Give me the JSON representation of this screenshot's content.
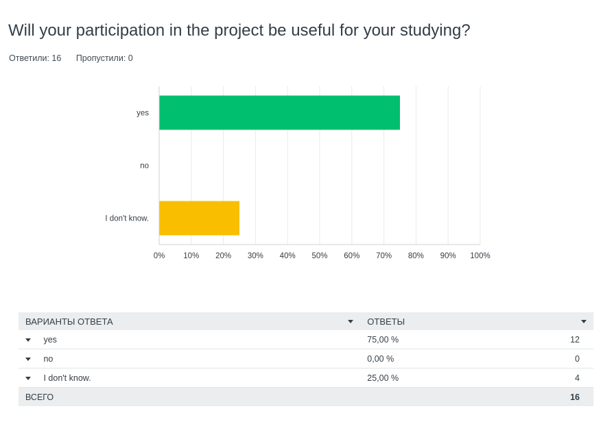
{
  "question": {
    "title": "Will your participation in the project be useful for your studying?",
    "answered_label": "Ответили: 16",
    "skipped_label": "Пропустили: 0"
  },
  "chart_data": {
    "type": "bar",
    "orientation": "horizontal",
    "categories": [
      "yes",
      "no",
      "I don't know."
    ],
    "values": [
      75,
      0,
      25
    ],
    "colors": [
      "#00bf6f",
      "#f4b400",
      "#f9be00"
    ],
    "xlim": [
      0,
      100
    ],
    "xticks": [
      "0%",
      "10%",
      "20%",
      "30%",
      "40%",
      "50%",
      "60%",
      "70%",
      "80%",
      "90%",
      "100%"
    ],
    "grid": true
  },
  "table": {
    "headers": {
      "choices": "ВАРИАНТЫ ОТВЕТА",
      "responses": "ОТВЕТЫ"
    },
    "rows": [
      {
        "label": "yes",
        "percent": "75,00 %",
        "count": "12"
      },
      {
        "label": "no",
        "percent": "0,00 %",
        "count": "0"
      },
      {
        "label": "I don't know.",
        "percent": "25,00 %",
        "count": "4"
      }
    ],
    "total": {
      "label": "ВСЕГО",
      "count": "16"
    }
  }
}
